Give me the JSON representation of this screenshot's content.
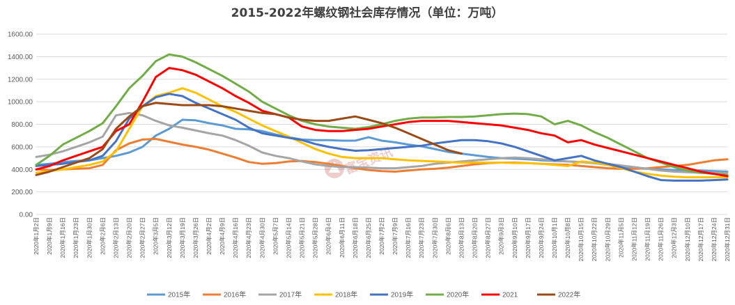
{
  "chart_data": {
    "type": "line",
    "title": "2015-2022年螺纹钢社会库存情况（单位：万吨）",
    "xlabel": "",
    "ylabel": "",
    "ylim": [
      0,
      1600
    ],
    "yticks": [
      "0.00",
      "200.00",
      "400.00",
      "600.00",
      "800.00",
      "1000.00",
      "1200.00",
      "1400.00",
      "1600.00"
    ],
    "grid": true,
    "legend_position": "bottom",
    "x": [
      "2020年1月2日",
      "2020年1月9日",
      "2020年1月16日",
      "2020年1月23日",
      "2020年1月30日",
      "2020年2月6日",
      "2020年2月13日",
      "2020年2月20日",
      "2020年2月27日",
      "2020年3月5日",
      "2020年3月12日",
      "2020年3月19日",
      "2020年3月26日",
      "2020年4月2日",
      "2020年4月9日",
      "2020年4月16日",
      "2020年4月23日",
      "2020年4月30日",
      "2020年5月7日",
      "2020年5月14日",
      "2020年5月21日",
      "2020年5月28日",
      "2020年6月4日",
      "2020年6月11日",
      "2020年6月18日",
      "2020年6月25日",
      "2020年7月2日",
      "2020年7月9日",
      "2020年7月16日",
      "2020年7月23日",
      "2020年7月30日",
      "2020年8月6日",
      "2020年8月13日",
      "2020年8月20日",
      "2020年8月27日",
      "2020年9月3日",
      "2020年9月10日",
      "2020年9月17日",
      "2020年9月24日",
      "2020年10月1日",
      "2020年10月8日",
      "2020年10月15日",
      "2020年10月22日",
      "2020年10月29日",
      "2020年11月5日",
      "2020年11月12日",
      "2020年11月19日",
      "2020年11月26日",
      "2020年12月3日",
      "2020年12月10日",
      "2020年12月17日",
      "2020年12月24日",
      "2020年12月31日"
    ],
    "series": [
      {
        "name": "2015年",
        "color": "#5b9bd5",
        "values": [
          440,
          450,
          465,
          475,
          480,
          500,
          520,
          550,
          600,
          700,
          760,
          840,
          835,
          810,
          790,
          760,
          755,
          740,
          710,
          685,
          665,
          660,
          660,
          655,
          655,
          685,
          655,
          640,
          620,
          605,
          580,
          555,
          540,
          525,
          510,
          500,
          495,
          490,
          480,
          475,
          470,
          465,
          455,
          440,
          425,
          410,
          405,
          400,
          395,
          390,
          390,
          385,
          380
        ]
      },
      {
        "name": "2016年",
        "color": "#ed7d31",
        "values": [
          400,
          395,
          400,
          405,
          410,
          440,
          570,
          630,
          665,
          670,
          645,
          620,
          600,
          575,
          540,
          505,
          465,
          450,
          455,
          470,
          475,
          465,
          450,
          430,
          410,
          395,
          385,
          380,
          390,
          400,
          405,
          415,
          430,
          445,
          455,
          460,
          460,
          455,
          450,
          445,
          440,
          430,
          420,
          410,
          405,
          405,
          410,
          420,
          430,
          440,
          460,
          480,
          490
        ]
      },
      {
        "name": "2017年",
        "color": "#a5a5a5",
        "values": [
          510,
          530,
          560,
          600,
          640,
          690,
          880,
          900,
          880,
          830,
          790,
          770,
          745,
          720,
          700,
          660,
          610,
          550,
          520,
          500,
          470,
          445,
          430,
          420,
          420,
          415,
          410,
          410,
          420,
          430,
          450,
          460,
          470,
          480,
          490,
          500,
          505,
          500,
          490,
          480,
          470,
          465,
          460,
          450,
          435,
          420,
          405,
          390,
          380,
          375,
          370,
          370,
          370
        ]
      },
      {
        "name": "2018年",
        "color": "#ffc000",
        "values": [
          370,
          385,
          400,
          420,
          440,
          470,
          560,
          760,
          960,
          1050,
          1080,
          1120,
          1080,
          1020,
          960,
          910,
          850,
          790,
          740,
          690,
          635,
          580,
          540,
          510,
          500,
          500,
          500,
          490,
          480,
          475,
          470,
          465,
          460,
          460,
          460,
          460,
          455,
          455,
          450,
          440,
          430,
          470,
          460,
          440,
          410,
          380,
          360,
          345,
          335,
          330,
          330,
          330,
          330
        ]
      },
      {
        "name": "2019年",
        "color": "#4472c4",
        "values": [
          430,
          440,
          450,
          465,
          480,
          520,
          650,
          850,
          960,
          1040,
          1070,
          1050,
          990,
          940,
          890,
          840,
          770,
          720,
          700,
          680,
          660,
          625,
          600,
          580,
          565,
          570,
          580,
          590,
          600,
          610,
          630,
          645,
          660,
          660,
          650,
          630,
          600,
          560,
          520,
          480,
          500,
          520,
          480,
          450,
          420,
          380,
          340,
          305,
          300,
          300,
          300,
          305,
          310
        ]
      },
      {
        "name": "2020年",
        "color": "#70ad47",
        "values": [
          440,
          520,
          620,
          680,
          740,
          810,
          960,
          1120,
          1230,
          1360,
          1420,
          1400,
          1350,
          1290,
          1230,
          1160,
          1090,
          1000,
          940,
          880,
          830,
          800,
          780,
          770,
          760,
          775,
          800,
          830,
          850,
          860,
          860,
          865,
          865,
          870,
          880,
          890,
          895,
          890,
          870,
          800,
          830,
          790,
          730,
          680,
          620,
          560,
          500,
          460,
          420,
          390,
          370,
          360,
          350
        ]
      },
      {
        "name": "2021",
        "color": "#ff0000",
        "values": [
          400,
          430,
          480,
          520,
          560,
          600,
          740,
          800,
          1000,
          1220,
          1300,
          1280,
          1240,
          1180,
          1120,
          1050,
          990,
          920,
          890,
          860,
          780,
          750,
          740,
          740,
          750,
          760,
          780,
          800,
          820,
          830,
          830,
          830,
          820,
          810,
          800,
          790,
          770,
          750,
          720,
          700,
          640,
          660,
          620,
          590,
          560,
          530,
          500,
          470,
          440,
          410,
          380,
          360,
          340
        ]
      },
      {
        "name": "2022年",
        "color": "#9c4a15",
        "values": [
          350,
          380,
          420,
          460,
          500,
          580,
          760,
          870,
          960,
          990,
          980,
          970,
          970,
          970,
          960,
          940,
          920,
          900,
          890,
          860,
          840,
          830,
          830,
          850,
          870,
          840,
          810,
          770,
          720,
          670,
          620,
          570,
          540,
          null,
          null,
          null,
          null,
          null,
          null,
          null,
          null,
          null,
          null,
          null,
          null,
          null,
          null,
          null,
          null,
          null,
          null,
          null,
          null
        ]
      }
    ]
  },
  "watermark": {
    "text": "富宝资讯"
  }
}
